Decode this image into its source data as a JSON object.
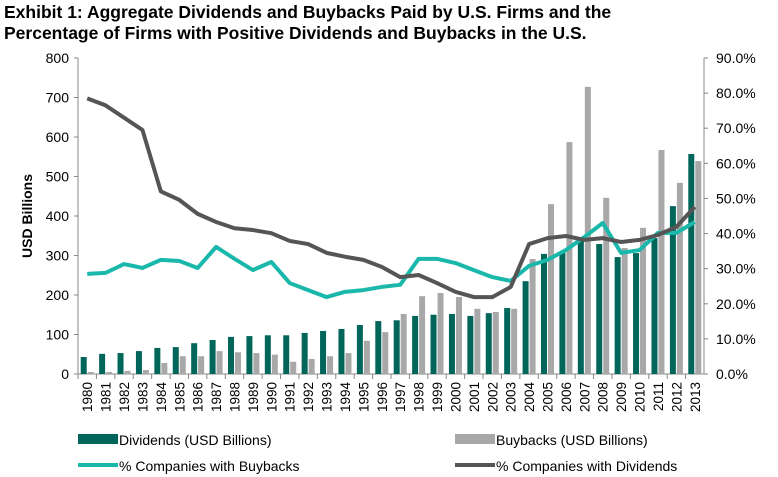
{
  "chart_data": {
    "type": "bar+line",
    "title_line1": "Exhibit 1: Aggregate Dividends and Buybacks Paid by U.S. Firms and the",
    "title_line2": "Percentage of Firms with Positive Dividends and Buybacks in the U.S.",
    "ylabel": "USD Billions",
    "ylim": [
      0,
      800
    ],
    "y_ticks": [
      "0",
      "100",
      "200",
      "300",
      "400",
      "500",
      "600",
      "700",
      "800"
    ],
    "y2lim": [
      0,
      90
    ],
    "y2_ticks": [
      "0.0%",
      "10.0%",
      "20.0%",
      "30.0%",
      "40.0%",
      "50.0%",
      "60.0%",
      "70.0%",
      "80.0%",
      "90.0%"
    ],
    "categories": [
      "1980",
      "1981",
      "1982",
      "1983",
      "1984",
      "1985",
      "1986",
      "1987",
      "1988",
      "1989",
      "1990",
      "1991",
      "1992",
      "1993",
      "1994",
      "1995",
      "1996",
      "1997",
      "1998",
      "1999",
      "2000",
      "2001",
      "2002",
      "2003",
      "2004",
      "2005",
      "2006",
      "2007",
      "2008",
      "2009",
      "2010",
      "2011",
      "2012",
      "2013"
    ],
    "series": [
      {
        "name": "Dividends (USD Billions)",
        "type": "bar",
        "axis": "left",
        "color": "#00665a",
        "values": [
          43,
          51,
          53,
          58,
          66,
          68,
          78,
          86,
          94,
          96,
          98,
          98,
          104,
          109,
          114,
          124,
          134,
          136,
          147,
          150,
          152,
          147,
          154,
          167,
          235,
          304,
          309,
          339,
          329,
          296,
          306,
          344,
          425,
          557
        ]
      },
      {
        "name": "Buybacks (USD Billions)",
        "type": "bar",
        "axis": "left",
        "color": "#a8a8a8",
        "values": [
          5,
          5,
          8,
          10,
          28,
          45,
          45,
          58,
          55,
          53,
          49,
          31,
          38,
          45,
          53,
          84,
          106,
          152,
          197,
          205,
          195,
          165,
          157,
          165,
          291,
          430,
          587,
          727,
          446,
          319,
          370,
          567,
          484,
          539
        ]
      },
      {
        "name": "% Companies with Buybacks",
        "type": "line",
        "axis": "right",
        "color": "#1ab8aa",
        "values": [
          28.5,
          28.8,
          31.3,
          30.2,
          32.5,
          32.2,
          30.2,
          36.2,
          32.8,
          29.6,
          31.9,
          25.9,
          23.9,
          21.9,
          23.4,
          23.9,
          24.8,
          25.4,
          32.8,
          32.8,
          31.6,
          29.6,
          27.6,
          26.5,
          30.8,
          32.5,
          35.3,
          39.0,
          43.0,
          34.5,
          35.3,
          40.2,
          40.2,
          43.3
        ]
      },
      {
        "name": "% Companies with Dividends",
        "type": "line",
        "axis": "right",
        "color": "#555555",
        "values": [
          78.5,
          76.5,
          73.0,
          69.5,
          52.0,
          49.6,
          45.6,
          43.3,
          41.5,
          41.0,
          40.1,
          37.9,
          37.0,
          34.5,
          33.4,
          32.5,
          30.5,
          27.6,
          28.2,
          25.9,
          23.4,
          21.9,
          21.9,
          24.8,
          37.0,
          38.7,
          39.3,
          38.2,
          38.7,
          37.6,
          38.2,
          39.6,
          41.9,
          47.6
        ]
      }
    ],
    "legend_placement": "bottom",
    "grid": false
  }
}
